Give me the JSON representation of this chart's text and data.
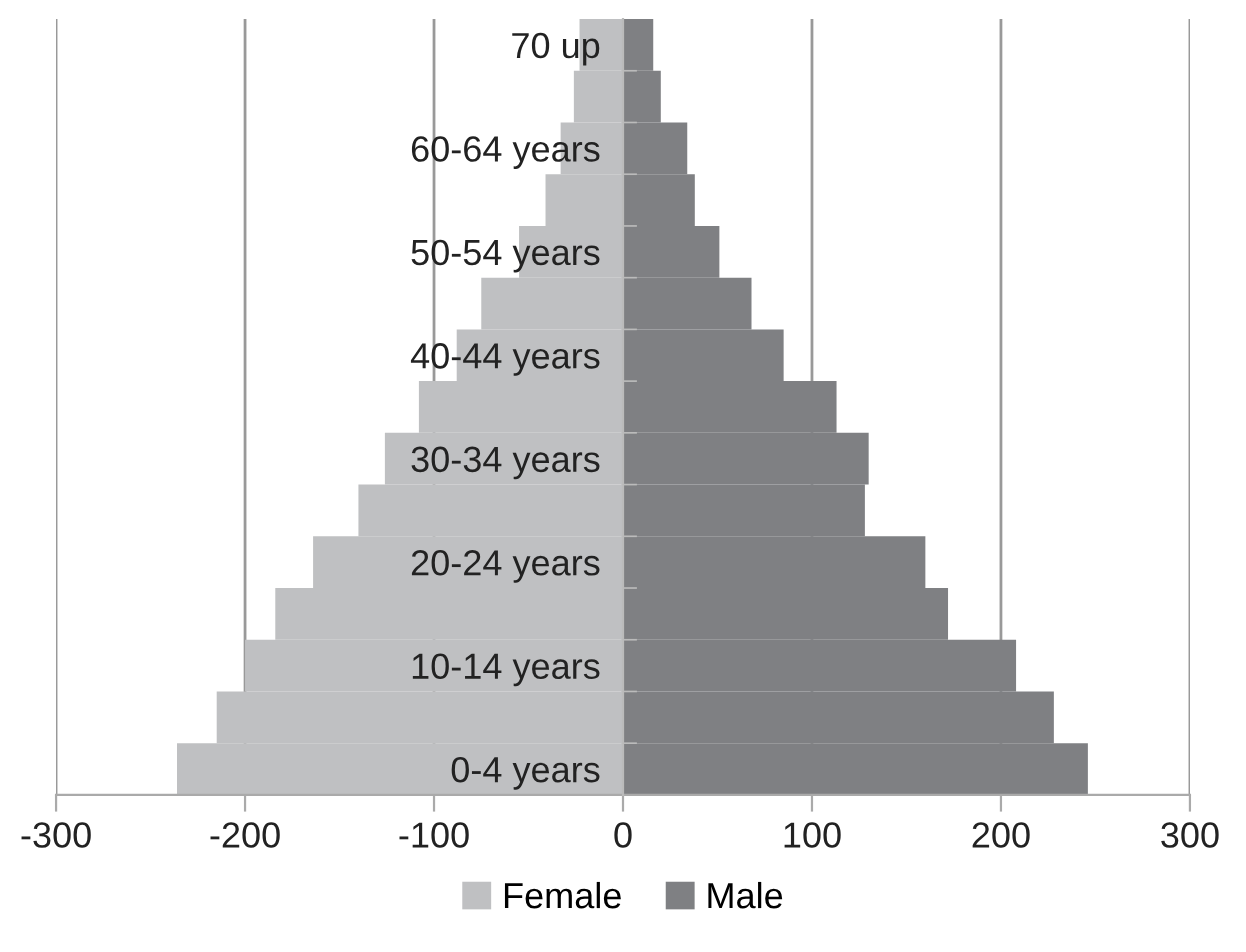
{
  "chart_data": {
    "type": "bar",
    "orientation": "horizontal",
    "stacked": true,
    "categories": [
      "70 up",
      null,
      "60-64 years",
      null,
      "50-54 years",
      null,
      "40-44 years",
      null,
      "30-34 years",
      null,
      "20-24 years",
      null,
      "10-14 years",
      null,
      "0-4 years"
    ],
    "series": [
      {
        "name": "Female",
        "color": "#bfc0c2",
        "values": [
          -23,
          -26,
          -33,
          -41,
          -55,
          -75,
          -88,
          -108,
          -126,
          -140,
          -164,
          -184,
          -200,
          -215,
          -236
        ]
      },
      {
        "name": "Male",
        "color": "#7f8083",
        "values": [
          16,
          20,
          34,
          38,
          51,
          68,
          85,
          113,
          130,
          128,
          160,
          172,
          208,
          228,
          246
        ]
      }
    ],
    "xlim": [
      -300,
      300
    ],
    "xticks": [
      -300,
      -200,
      -100,
      0,
      100,
      200,
      300
    ],
    "grid": "x",
    "legend": "bottom"
  }
}
